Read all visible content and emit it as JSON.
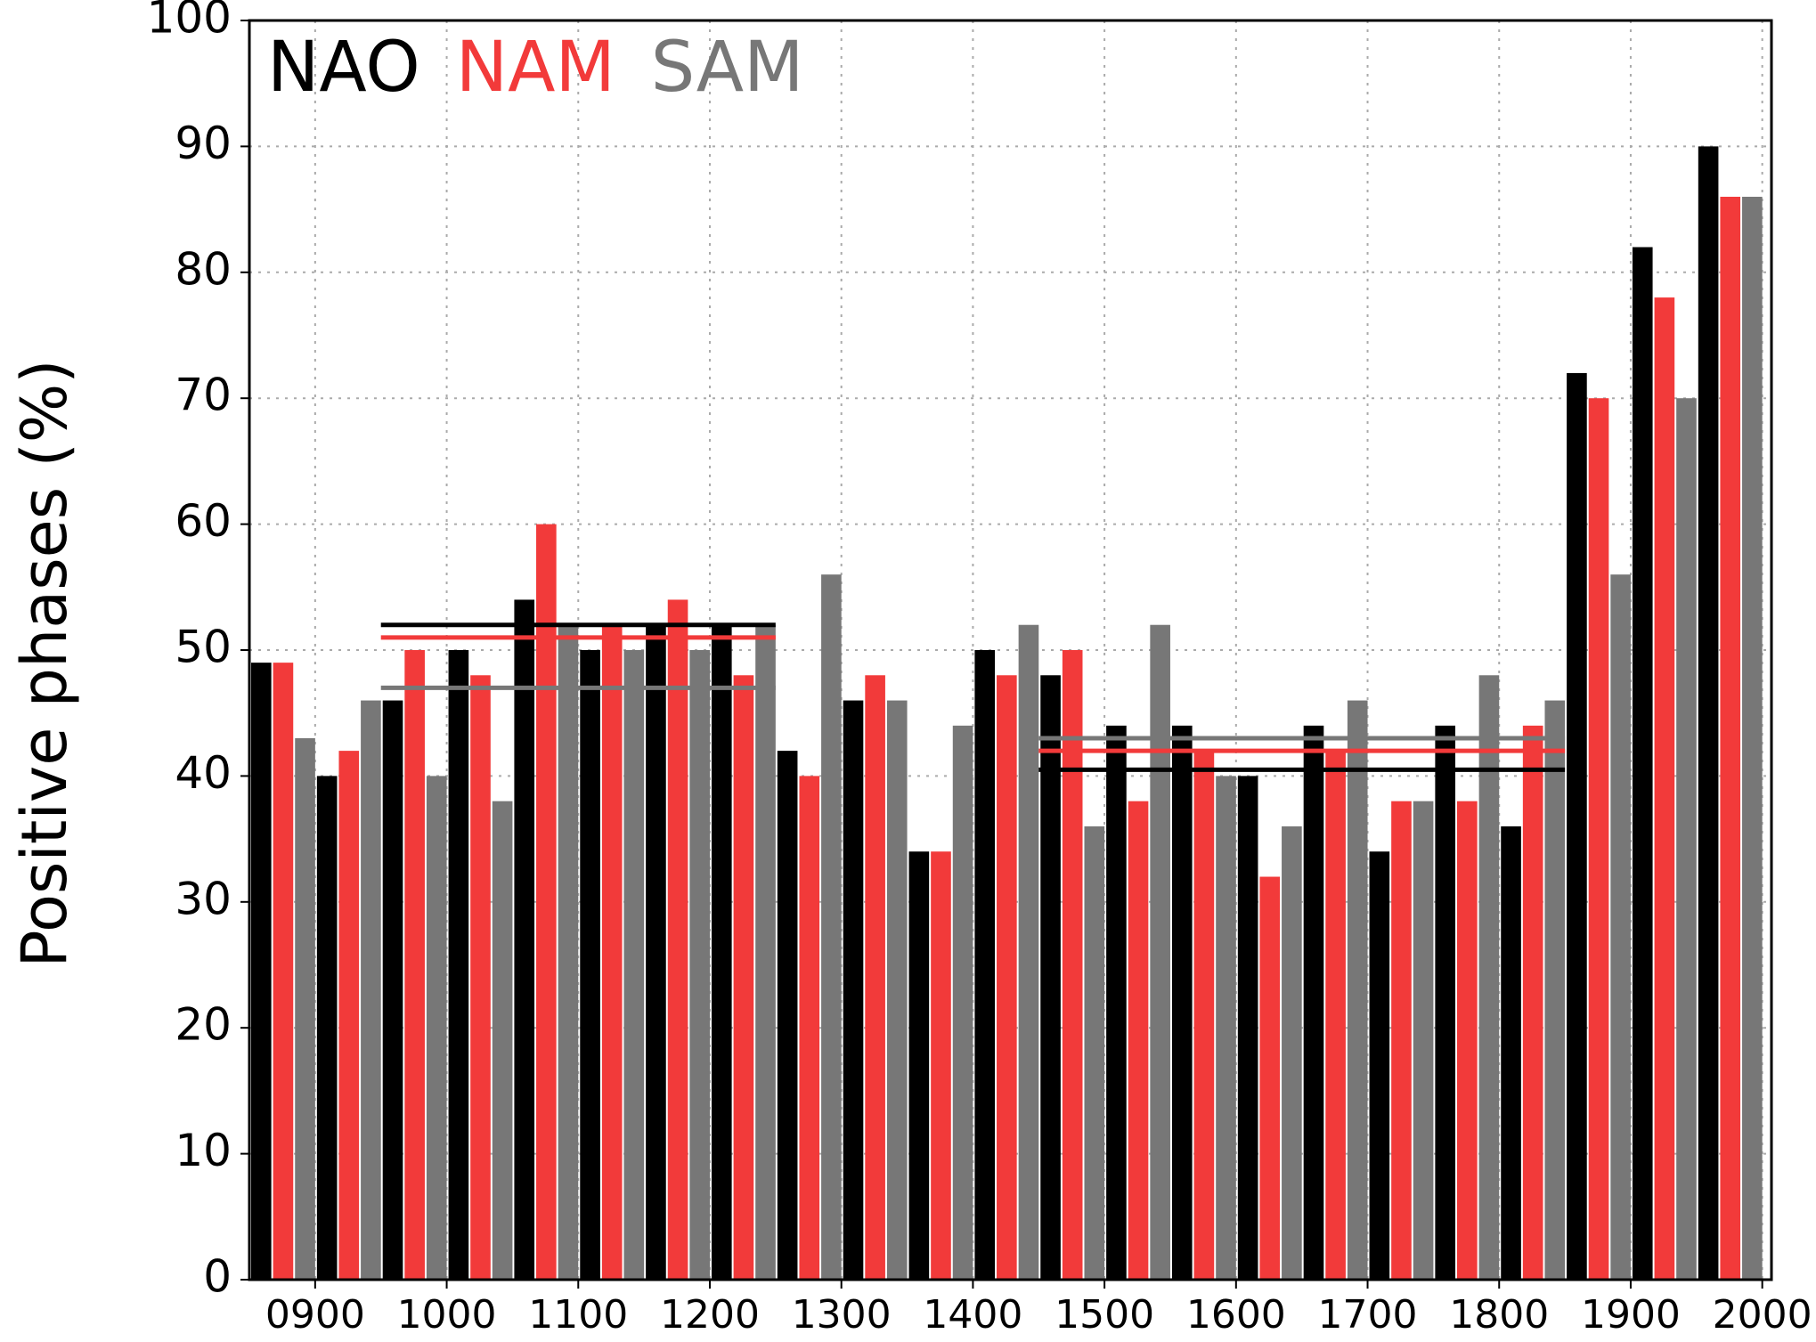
{
  "chart_data": {
    "type": "bar",
    "ylabel": "Positive phases (%)",
    "x": [
      850,
      900,
      950,
      1000,
      1050,
      1100,
      1150,
      1200,
      1250,
      1300,
      1350,
      1400,
      1450,
      1500,
      1550,
      1600,
      1650,
      1700,
      1750,
      1800,
      1850,
      1900,
      1950
    ],
    "bar_span": 50,
    "series": [
      {
        "name": "NAO",
        "color": "#000000",
        "values": [
          49,
          40,
          46,
          50,
          54,
          50,
          52,
          52,
          42,
          46,
          34,
          50,
          48,
          44,
          44,
          40,
          44,
          34,
          44,
          36,
          72,
          82,
          90
        ],
        "period_means": [
          {
            "x": [
              950,
              1250
            ],
            "value": 52
          },
          {
            "x": [
              1450,
              1850
            ],
            "value": 40.5
          }
        ]
      },
      {
        "name": "NAM",
        "color": "#f23a3a",
        "values": [
          49,
          42,
          50,
          48,
          60,
          52,
          54,
          48,
          40,
          48,
          34,
          48,
          50,
          38,
          42,
          32,
          42,
          38,
          38,
          44,
          70,
          78,
          86
        ],
        "period_means": [
          {
            "x": [
              950,
              1250
            ],
            "value": 51
          },
          {
            "x": [
              1450,
              1850
            ],
            "value": 42
          }
        ]
      },
      {
        "name": "SAM",
        "color": "#777777",
        "values": [
          43,
          46,
          40,
          38,
          52,
          50,
          50,
          52,
          56,
          46,
          44,
          52,
          36,
          52,
          40,
          36,
          46,
          38,
          48,
          46,
          56,
          70,
          86
        ],
        "period_means": [
          {
            "x": [
              950,
              1250
            ],
            "value": 47
          },
          {
            "x": [
              1450,
              1850
            ],
            "value": 43
          }
        ]
      }
    ],
    "xlim": [
      850,
      2007
    ],
    "xticks": [
      {
        "value": 900,
        "label": "0900"
      },
      1000,
      1100,
      1200,
      1300,
      1400,
      1500,
      1600,
      1700,
      1800,
      1900,
      2000
    ],
    "ylim": [
      0,
      100
    ],
    "yticks": [
      0,
      10,
      20,
      30,
      40,
      50,
      60,
      70,
      80,
      90,
      100
    ],
    "grid": true,
    "legend": "upper left"
  }
}
